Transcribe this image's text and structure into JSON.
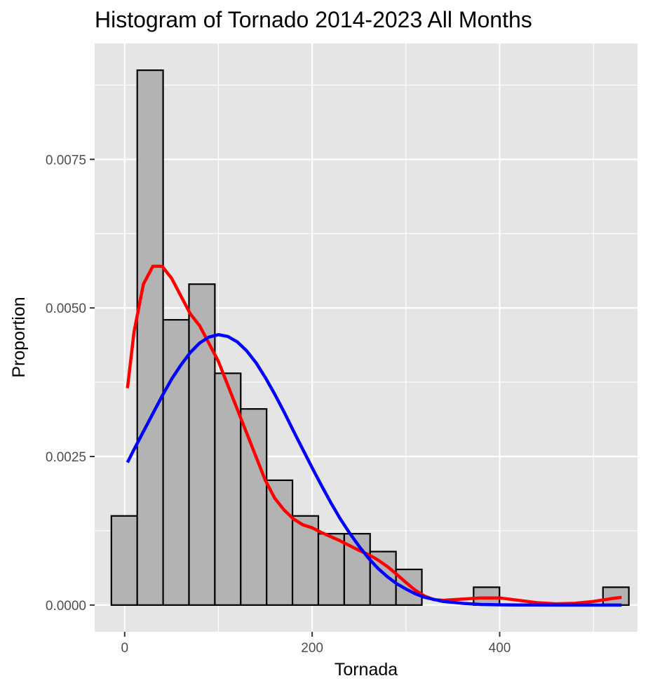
{
  "chart_data": {
    "type": "histogram",
    "title": "Histogram of Tornado 2014-2023 All Months",
    "xlabel": "Tornada",
    "ylabel": "Proportion",
    "xlim": [
      -32,
      547
    ],
    "ylim": [
      -0.00045,
      0.00945
    ],
    "x_ticks": [
      0,
      200,
      400
    ],
    "x_tick_labels": [
      "0",
      "200",
      "400"
    ],
    "y_ticks": [
      0,
      0.0025,
      0.005,
      0.0075
    ],
    "y_tick_labels": [
      "0.0000",
      "0.0025",
      "0.0050",
      "0.0075"
    ],
    "grid": true,
    "background": "#e5e5e5",
    "bin_width": 27.6,
    "bins": [
      {
        "x0": -14.2,
        "x1": 13.4,
        "value": 0.0015
      },
      {
        "x0": 13.4,
        "x1": 41.0,
        "value": 0.009
      },
      {
        "x0": 41.0,
        "x1": 68.6,
        "value": 0.0048
      },
      {
        "x0": 68.6,
        "x1": 96.2,
        "value": 0.0054
      },
      {
        "x0": 96.2,
        "x1": 123.8,
        "value": 0.0039
      },
      {
        "x0": 123.8,
        "x1": 151.4,
        "value": 0.0033
      },
      {
        "x0": 151.4,
        "x1": 179.0,
        "value": 0.0021
      },
      {
        "x0": 179.0,
        "x1": 206.6,
        "value": 0.0015
      },
      {
        "x0": 206.6,
        "x1": 234.2,
        "value": 0.0012
      },
      {
        "x0": 234.2,
        "x1": 261.8,
        "value": 0.0012
      },
      {
        "x0": 261.8,
        "x1": 289.4,
        "value": 0.0009
      },
      {
        "x0": 289.4,
        "x1": 317.0,
        "value": 0.0006
      },
      {
        "x0": 317.0,
        "x1": 344.6,
        "value": 0.0
      },
      {
        "x0": 344.6,
        "x1": 372.2,
        "value": 0.0
      },
      {
        "x0": 372.2,
        "x1": 399.8,
        "value": 0.0003
      },
      {
        "x0": 399.8,
        "x1": 427.4,
        "value": 0.0
      },
      {
        "x0": 427.4,
        "x1": 455.0,
        "value": 0.0
      },
      {
        "x0": 455.0,
        "x1": 482.6,
        "value": 0.0
      },
      {
        "x0": 482.6,
        "x1": 510.2,
        "value": 0.0
      },
      {
        "x0": 510.2,
        "x1": 537.8,
        "value": 0.0003
      }
    ],
    "bar_fill": "#b3b3b3",
    "bar_stroke": "#000000",
    "series": [
      {
        "color": "#ff0000",
        "x": [
          3,
          10,
          20,
          30,
          40,
          50,
          60,
          70,
          80,
          90,
          100,
          110,
          120,
          130,
          140,
          150,
          160,
          170,
          180,
          190,
          200,
          210,
          220,
          230,
          240,
          250,
          260,
          270,
          280,
          290,
          300,
          310,
          320,
          330,
          340,
          360,
          380,
          400,
          420,
          440,
          460,
          480,
          500,
          520,
          530
        ],
        "y": [
          0.00365,
          0.0046,
          0.0054,
          0.0057,
          0.0057,
          0.0055,
          0.0052,
          0.0049,
          0.0047,
          0.0044,
          0.0041,
          0.0037,
          0.0033,
          0.0029,
          0.0025,
          0.0021,
          0.0018,
          0.0016,
          0.00145,
          0.00135,
          0.0013,
          0.00122,
          0.00115,
          0.00108,
          0.001,
          0.00092,
          0.00085,
          0.00076,
          0.00065,
          0.00052,
          0.00038,
          0.00025,
          0.00015,
          9e-05,
          8e-05,
          0.0001,
          0.00012,
          0.00012,
          8e-05,
          4e-05,
          2e-05,
          3e-05,
          6e-05,
          0.00011,
          0.00013
        ]
      },
      {
        "color": "#0000ff",
        "x": [
          3,
          10,
          20,
          30,
          40,
          50,
          60,
          70,
          80,
          90,
          100,
          110,
          120,
          130,
          140,
          150,
          160,
          170,
          180,
          190,
          200,
          210,
          220,
          230,
          240,
          250,
          260,
          270,
          280,
          290,
          300,
          310,
          320,
          340,
          360,
          380,
          400,
          420,
          440,
          460,
          480,
          500,
          530
        ],
        "y": [
          0.0024,
          0.00262,
          0.00292,
          0.00322,
          0.00352,
          0.0038,
          0.00404,
          0.00425,
          0.00441,
          0.00451,
          0.00455,
          0.00452,
          0.00443,
          0.00428,
          0.00408,
          0.00383,
          0.00355,
          0.00325,
          0.00293,
          0.00262,
          0.00231,
          0.00201,
          0.00172,
          0.00145,
          0.00121,
          0.00099,
          0.00079,
          0.00062,
          0.00048,
          0.00036,
          0.00027,
          0.00019,
          0.00013,
          6e-05,
          3e-05,
          1e-05,
          5e-06,
          2e-06,
          1e-06,
          0.0,
          0.0,
          0.0,
          0.0
        ]
      }
    ]
  }
}
